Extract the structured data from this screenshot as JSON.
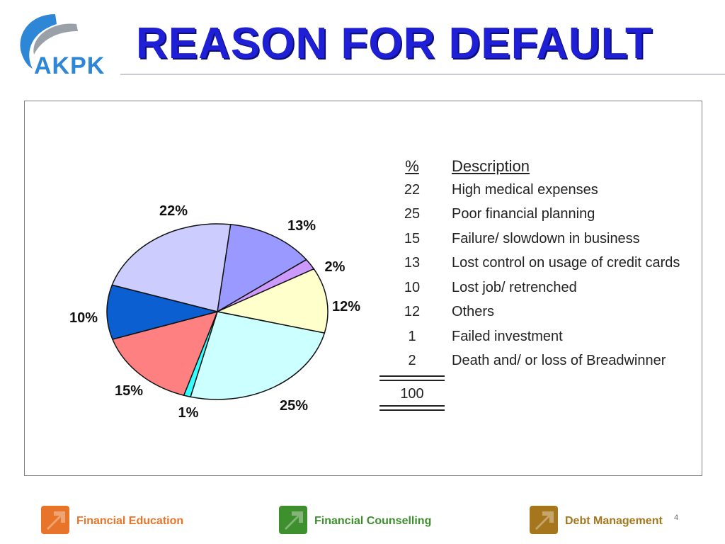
{
  "logo": {
    "text": "AKPK"
  },
  "title": "REASON FOR DEFAULT",
  "chart_data": {
    "type": "pie",
    "title": "",
    "slices": [
      {
        "pct_label": "13%",
        "value": 13,
        "color": "#9999ff"
      },
      {
        "pct_label": "2%",
        "value": 2,
        "color": "#cc99ff"
      },
      {
        "pct_label": "12%",
        "value": 12,
        "color": "#ffffcc"
      },
      {
        "pct_label": "25%",
        "value": 25,
        "color": "#ccffff"
      },
      {
        "pct_label": "1%",
        "value": 1,
        "color": "#33ffff"
      },
      {
        "pct_label": "15%",
        "value": 15,
        "color": "#ff8080"
      },
      {
        "pct_label": "10%",
        "value": 10,
        "color": "#0b5fd0"
      },
      {
        "pct_label": "22%",
        "value": 22,
        "color": "#ccccff"
      }
    ],
    "table": {
      "headers": {
        "pct": "%",
        "description": "Description"
      },
      "rows": [
        {
          "pct": "22",
          "description": "High medical expenses"
        },
        {
          "pct": "25",
          "description": "Poor financial planning"
        },
        {
          "pct": "15",
          "description": "Failure/ slowdown in business"
        },
        {
          "pct": "13",
          "description": "Lost control on usage of credit cards"
        },
        {
          "pct": "10",
          "description": "Lost job/ retrenched"
        },
        {
          "pct": "12",
          "description": "Others"
        },
        {
          "pct": "1",
          "description": "Failed investment"
        },
        {
          "pct": "2",
          "description": "Death and/ or loss of Breadwinner"
        }
      ],
      "total": "100"
    }
  },
  "footer": {
    "items": [
      {
        "label": "Financial Education",
        "color": "#e8742a"
      },
      {
        "label": "Financial Counselling",
        "color": "#3e8f2e"
      },
      {
        "label": "Debt Management",
        "color": "#a6761d"
      }
    ]
  },
  "page_number": "4"
}
